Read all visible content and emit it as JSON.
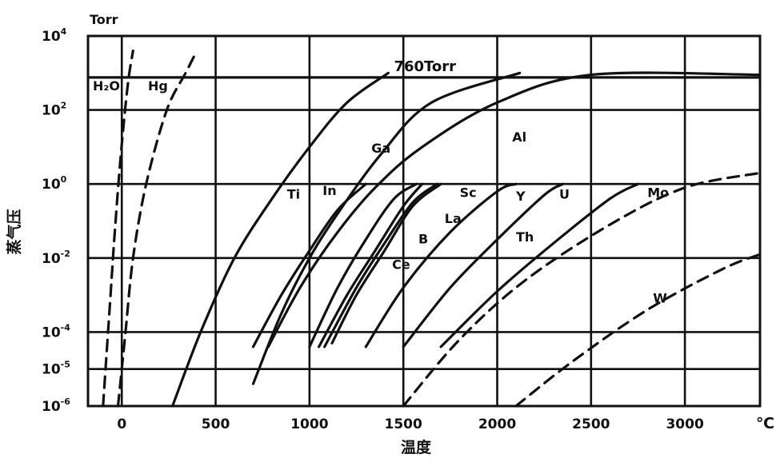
{
  "chart_data": {
    "type": "line",
    "title": "",
    "xlabel": "温度",
    "xunit": "℃",
    "ylabel": "蒸气压",
    "yunit": "Torr",
    "yscale": "log",
    "xlim": [
      -180,
      3400
    ],
    "ylim_exp": [
      -6,
      4
    ],
    "grid": true,
    "x_ticks": [
      "0",
      "500",
      "1000",
      "1500",
      "2000",
      "2500",
      "3000"
    ],
    "y_ticks": [
      {
        "base": "10",
        "exp": "4"
      },
      {
        "base": "10",
        "exp": "2"
      },
      {
        "base": "10",
        "exp": "0"
      },
      {
        "base": "10",
        "exp": "-2"
      },
      {
        "base": "10",
        "exp": "-4"
      },
      {
        "base": "10",
        "exp": "-5"
      },
      {
        "base": "10",
        "exp": "-6"
      }
    ],
    "reference_line": {
      "label": "760Torr",
      "log_y": 2.88
    },
    "series": [
      {
        "name": "H₂O",
        "dashed": true,
        "points": [
          [
            -100,
            -6
          ],
          [
            -80,
            -4.5
          ],
          [
            -60,
            -3
          ],
          [
            -40,
            -1.5
          ],
          [
            -10,
            0.5
          ],
          [
            30,
            2.6
          ],
          [
            60,
            3.6
          ]
        ]
      },
      {
        "name": "Hg",
        "dashed": true,
        "points": [
          [
            -20,
            -6
          ],
          [
            0,
            -5
          ],
          [
            20,
            -4
          ],
          [
            60,
            -2
          ],
          [
            130,
            0
          ],
          [
            240,
            2
          ],
          [
            340,
            3
          ],
          [
            400,
            3.6
          ]
        ]
      },
      {
        "name": "Ti",
        "dashed": false,
        "points": [
          [
            270,
            -6
          ],
          [
            420,
            -4
          ],
          [
            600,
            -2
          ],
          [
            800,
            -0.4
          ],
          [
            1000,
            1
          ],
          [
            1200,
            2.2
          ],
          [
            1420,
            3
          ]
        ]
      },
      {
        "name": "In",
        "dashed": false,
        "points": [
          [
            700,
            -5.4
          ],
          [
            850,
            -3.5
          ],
          [
            1000,
            -2
          ],
          [
            1150,
            -0.8
          ],
          [
            1380,
            0.8
          ],
          [
            1650,
            2.2
          ],
          [
            2120,
            3
          ]
        ]
      },
      {
        "name": "Ga",
        "dashed": false,
        "points": [
          [
            700,
            -4.4
          ],
          [
            850,
            -3
          ],
          [
            1000,
            -1.8
          ],
          [
            1150,
            -0.7
          ],
          [
            1300,
            0
          ]
        ]
      },
      {
        "name": "Al",
        "dashed": false,
        "points": [
          [
            780,
            -4.4
          ],
          [
            950,
            -2.8
          ],
          [
            1150,
            -1.3
          ],
          [
            1350,
            -0.1
          ],
          [
            1600,
            1
          ],
          [
            2000,
            2.2
          ],
          [
            2500,
            2.95
          ],
          [
            3400,
            2.95
          ]
        ]
      },
      {
        "name": "B",
        "dashed": false,
        "points": [
          [
            1050,
            -4.4
          ],
          [
            1200,
            -3
          ],
          [
            1350,
            -1.8
          ],
          [
            1500,
            -0.6
          ],
          [
            1600,
            0
          ]
        ]
      },
      {
        "name": "Ce",
        "dashed": false,
        "points": [
          [
            1000,
            -4.4
          ],
          [
            1150,
            -2.8
          ],
          [
            1300,
            -1.5
          ],
          [
            1450,
            -0.4
          ],
          [
            1570,
            0
          ]
        ]
      },
      {
        "name": "La",
        "dashed": false,
        "points": [
          [
            1080,
            -4.4
          ],
          [
            1250,
            -2.8
          ],
          [
            1400,
            -1.6
          ],
          [
            1550,
            -0.5
          ],
          [
            1680,
            0
          ]
        ]
      },
      {
        "name": "Sc",
        "dashed": false,
        "points": [
          [
            1120,
            -4.3
          ],
          [
            1250,
            -3
          ],
          [
            1400,
            -1.8
          ],
          [
            1550,
            -0.6
          ],
          [
            1700,
            0
          ]
        ]
      },
      {
        "name": "Y",
        "dashed": false,
        "points": [
          [
            1300,
            -4.4
          ],
          [
            1500,
            -2.8
          ],
          [
            1750,
            -1.3
          ],
          [
            2000,
            -0.2
          ],
          [
            2100,
            0
          ]
        ]
      },
      {
        "name": "U",
        "dashed": false,
        "points": [
          [
            1500,
            -4.4
          ],
          [
            1750,
            -2.8
          ],
          [
            2000,
            -1.5
          ],
          [
            2250,
            -0.3
          ],
          [
            2350,
            0
          ]
        ]
      },
      {
        "name": "Th",
        "dashed": false,
        "points": [
          [
            1700,
            -4.4
          ],
          [
            2000,
            -2.9
          ],
          [
            2300,
            -1.6
          ],
          [
            2600,
            -0.4
          ],
          [
            2750,
            0
          ]
        ]
      },
      {
        "name": "Mo",
        "dashed": true,
        "points": [
          [
            1500,
            -6
          ],
          [
            1800,
            -4.2
          ],
          [
            2150,
            -2.6
          ],
          [
            2600,
            -1.1
          ],
          [
            3000,
            -0.1
          ],
          [
            3400,
            0.3
          ]
        ]
      },
      {
        "name": "W",
        "dashed": true,
        "points": [
          [
            2100,
            -6
          ],
          [
            2400,
            -4.8
          ],
          [
            2800,
            -3.4
          ],
          [
            3200,
            -2.3
          ],
          [
            3400,
            -1.9
          ]
        ]
      }
    ],
    "labels": [
      {
        "text": "Ti",
        "x": 880,
        "y": -0.4
      },
      {
        "text": "In",
        "x": 1070,
        "y": -0.3
      },
      {
        "text": "Ga",
        "x": 1330,
        "y": 0.85
      },
      {
        "text": "Al",
        "x": 2080,
        "y": 1.15
      },
      {
        "text": "Sc",
        "x": 1800,
        "y": -0.35
      },
      {
        "text": "La",
        "x": 1720,
        "y": -1.05
      },
      {
        "text": "B",
        "x": 1580,
        "y": -1.6
      },
      {
        "text": "Ce",
        "x": 1440,
        "y": -2.3
      },
      {
        "text": "Y",
        "x": 2100,
        "y": -0.45
      },
      {
        "text": "U",
        "x": 2330,
        "y": -0.4
      },
      {
        "text": "Th",
        "x": 2100,
        "y": -1.55
      },
      {
        "text": "Mo",
        "x": 2800,
        "y": -0.35
      },
      {
        "text": "W",
        "x": 2830,
        "y": -3.2
      }
    ]
  }
}
